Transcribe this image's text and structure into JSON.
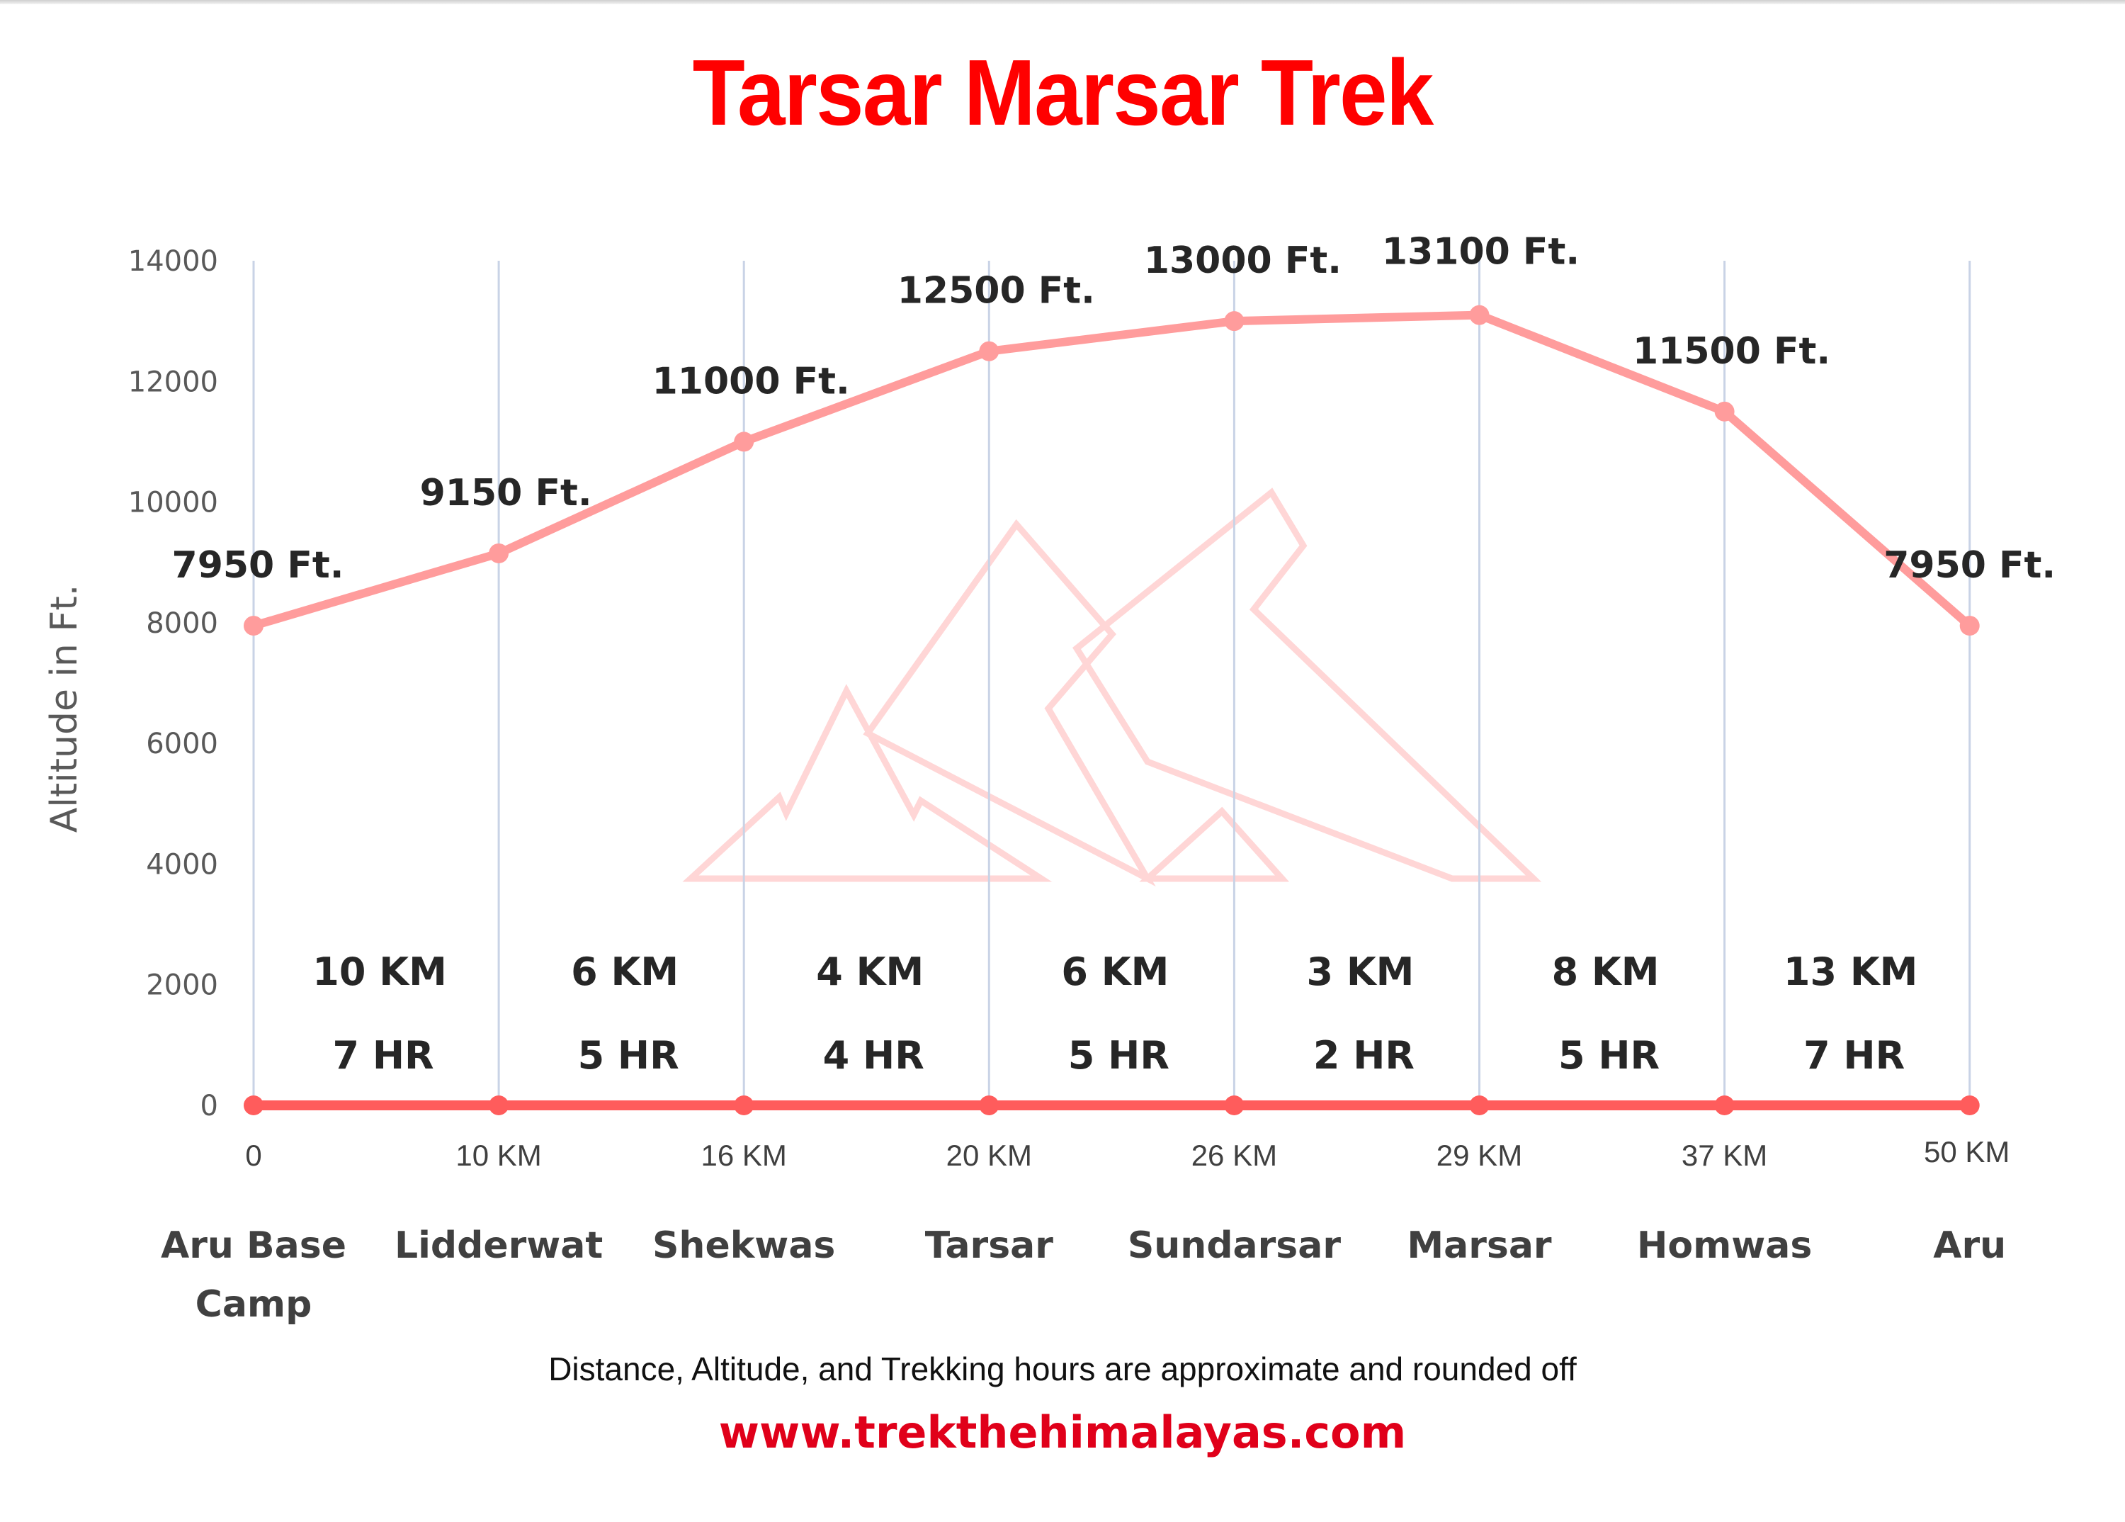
{
  "title": "Tarsar Marsar Trek",
  "footnote": "Distance, Altitude, and Trekking hours are approximate and rounded off",
  "website": "www.trekthehimalayas.com",
  "colors": {
    "title": "#ff0000",
    "altitude_line": "#ff9c9c",
    "baseline": "#ff5c5c",
    "gridline": "#c9d3e6",
    "watermark": "#ffd6d6",
    "website": "#e0001a"
  },
  "chart_data": {
    "type": "line",
    "title": "Tarsar Marsar Trek",
    "xlabel": "",
    "ylabel": "Altitude in Ft.",
    "ylim": [
      0,
      14000
    ],
    "yticks": [
      0,
      2000,
      4000,
      6000,
      8000,
      10000,
      12000,
      14000
    ],
    "grid": "vertical",
    "categories": [
      "Aru Base Camp",
      "Lidderwat",
      "Shekwas",
      "Tarsar",
      "Sundarsar",
      "Marsar",
      "Homwas",
      "Aru"
    ],
    "distance_ticks": [
      "0",
      "10 KM",
      "16 KM",
      "20 KM",
      "26 KM",
      "29 KM",
      "37 KM",
      "50 KM"
    ],
    "series": [
      {
        "name": "Altitude",
        "values": [
          7950,
          9150,
          11000,
          12500,
          13000,
          13100,
          11500,
          7950
        ],
        "labels": [
          "7950 Ft.",
          "9150 Ft.",
          "11000 Ft.",
          "12500 Ft.",
          "13000 Ft.",
          "13100 Ft.",
          "11500 Ft.",
          "7950 Ft."
        ]
      },
      {
        "name": "Baseline",
        "values": [
          0,
          0,
          0,
          0,
          0,
          0,
          0,
          0
        ]
      }
    ],
    "segments": [
      {
        "distance": "10 KM",
        "hours": "7 HR"
      },
      {
        "distance": "6 KM",
        "hours": "5 HR"
      },
      {
        "distance": "4 KM",
        "hours": "4 HR"
      },
      {
        "distance": "6 KM",
        "hours": "5 HR"
      },
      {
        "distance": "3 KM",
        "hours": "2 HR"
      },
      {
        "distance": "8 KM",
        "hours": "5 HR"
      },
      {
        "distance": "13 KM",
        "hours": "7 HR"
      }
    ]
  }
}
